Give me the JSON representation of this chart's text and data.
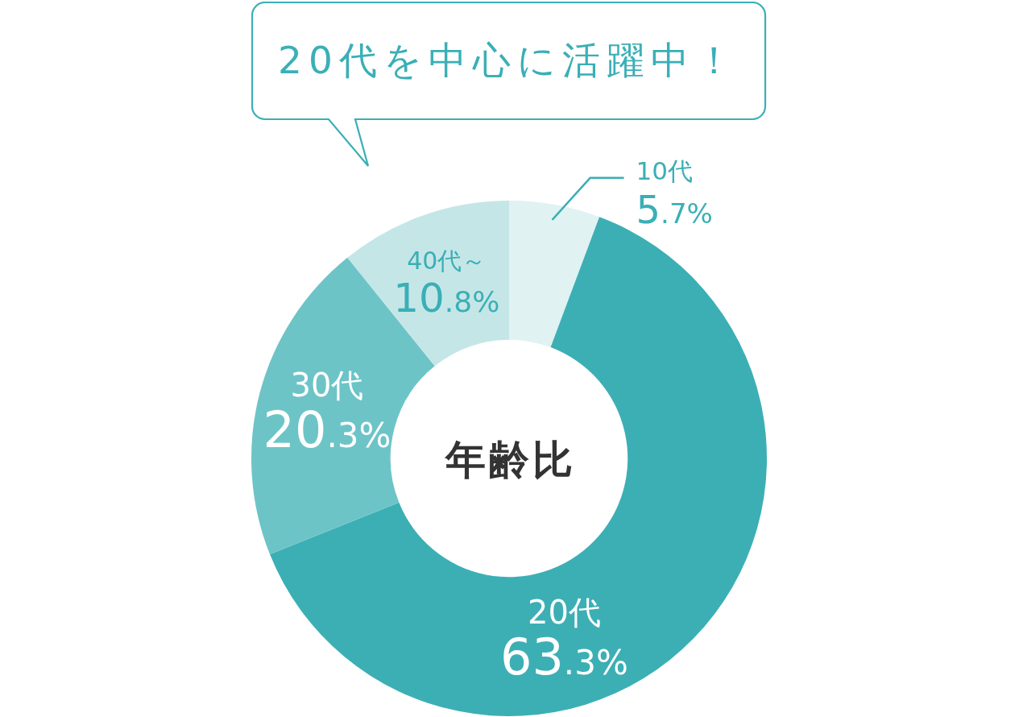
{
  "chart_data": {
    "type": "donut",
    "title": "年齢比",
    "annotations": [
      "20代を中心に活躍中！"
    ],
    "categories": [
      "10代",
      "20代",
      "30代",
      "40代～"
    ],
    "values": [
      5.7,
      63.3,
      20.3,
      10.8
    ],
    "colors": [
      "#e0f2f2",
      "#3cafb5",
      "#6dc4c7",
      "#c5e6e7"
    ],
    "value_labels": [
      "5.7%",
      "63.3%",
      "20.3%",
      "10.8%"
    ]
  }
}
